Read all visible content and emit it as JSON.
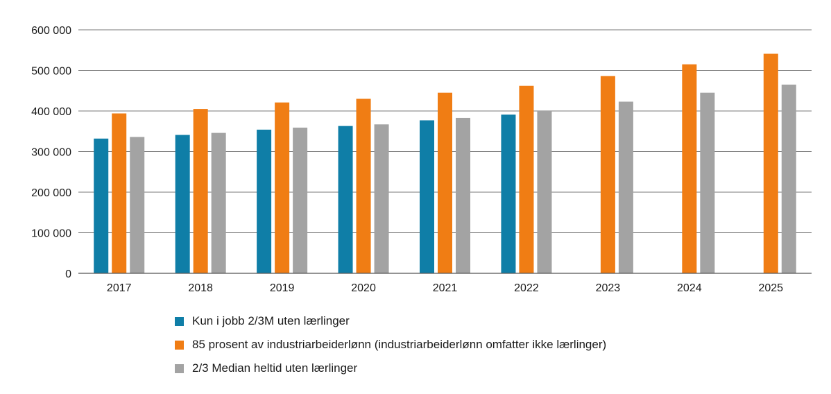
{
  "chart_data": {
    "type": "bar",
    "categories": [
      "2017",
      "2018",
      "2019",
      "2020",
      "2021",
      "2022",
      "2023",
      "2024",
      "2025"
    ],
    "series": [
      {
        "name": "Kun i jobb 2/3M uten lærlinger",
        "color": "#0f7ea7",
        "values": [
          332000,
          341000,
          354000,
          363000,
          377000,
          391000,
          null,
          null,
          null
        ]
      },
      {
        "name": "85 prosent av industriarbeiderlønn (industriarbeiderlønn omfatter ikke lærlinger)",
        "color": "#f07d14",
        "values": [
          394000,
          405000,
          421000,
          430000,
          445000,
          462000,
          486000,
          515000,
          541000
        ]
      },
      {
        "name": "2/3 Median heltid uten lærlinger",
        "color": "#a3a3a3",
        "values": [
          336000,
          346000,
          359000,
          367000,
          383000,
          400000,
          423000,
          445000,
          465000
        ]
      }
    ],
    "y_ticks": [
      "0",
      "100 000",
      "200 000",
      "300 000",
      "400 000",
      "500 000",
      "600 000"
    ],
    "ylim": [
      0,
      600000
    ],
    "grid": true,
    "legend_position": "bottom",
    "title": "",
    "xlabel": "",
    "ylabel": ""
  }
}
